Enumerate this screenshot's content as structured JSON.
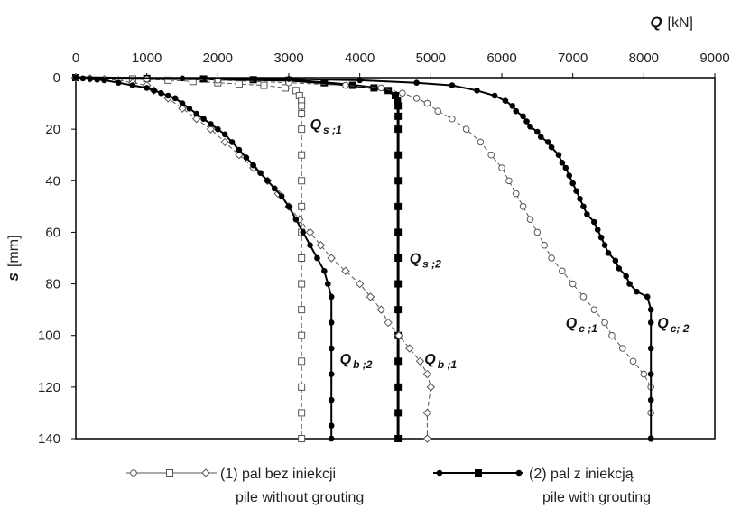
{
  "chart_data": {
    "type": "line",
    "axes": {
      "x": {
        "var": "Q",
        "unit": "[kN]",
        "range": [
          0,
          9000
        ],
        "ticks": [
          0,
          1000,
          2000,
          3000,
          4000,
          5000,
          6000,
          7000,
          8000,
          9000
        ],
        "position": "top"
      },
      "y": {
        "var": "s",
        "unit": "[mm]",
        "range": [
          0,
          140
        ],
        "ticks": [
          0,
          20,
          40,
          60,
          80,
          100,
          120,
          140
        ],
        "inverted": true
      }
    },
    "grid": false,
    "legend": {
      "placement": "bottom",
      "entries": [
        {
          "group": "1",
          "line1": "(1) pal bez iniekcji",
          "line2": "pile without grouting",
          "style": "dashed-open"
        },
        {
          "group": "2",
          "line1": "(2) pal z iniekcją",
          "line2": "pile with grouting",
          "style": "solid-filled"
        }
      ]
    },
    "series": [
      {
        "id": "Qs1",
        "label": "Q",
        "sub": "s ;1",
        "group": "1",
        "marker": "square",
        "points": [
          [
            0,
            0
          ],
          [
            800,
            0.5
          ],
          [
            1300,
            1
          ],
          [
            1650,
            1.5
          ],
          [
            2000,
            2
          ],
          [
            2300,
            2.5
          ],
          [
            2650,
            3
          ],
          [
            2950,
            4
          ],
          [
            3100,
            5
          ],
          [
            3150,
            7
          ],
          [
            3180,
            9
          ],
          [
            3180,
            11
          ],
          [
            3180,
            14
          ],
          [
            3180,
            20
          ],
          [
            3180,
            30
          ],
          [
            3180,
            40
          ],
          [
            3180,
            50
          ],
          [
            3180,
            60
          ],
          [
            3180,
            70
          ],
          [
            3180,
            80
          ],
          [
            3180,
            90
          ],
          [
            3180,
            100
          ],
          [
            3180,
            110
          ],
          [
            3180,
            120
          ],
          [
            3180,
            130
          ],
          [
            3180,
            140
          ]
        ]
      },
      {
        "id": "Qs2",
        "label": "Q",
        "sub": "s ;2",
        "group": "2",
        "marker": "filled-square",
        "points": [
          [
            0,
            0
          ],
          [
            1000,
            0.3
          ],
          [
            1800,
            0.5
          ],
          [
            2500,
            0.8
          ],
          [
            3000,
            1
          ],
          [
            3500,
            2
          ],
          [
            3900,
            3
          ],
          [
            4200,
            4
          ],
          [
            4400,
            5
          ],
          [
            4500,
            7
          ],
          [
            4530,
            9
          ],
          [
            4540,
            11
          ],
          [
            4540,
            15
          ],
          [
            4540,
            20
          ],
          [
            4540,
            30
          ],
          [
            4540,
            40
          ],
          [
            4540,
            50
          ],
          [
            4540,
            60
          ],
          [
            4540,
            70
          ],
          [
            4540,
            80
          ],
          [
            4540,
            90
          ],
          [
            4540,
            100
          ],
          [
            4540,
            110
          ],
          [
            4540,
            120
          ],
          [
            4540,
            130
          ],
          [
            4540,
            140
          ]
        ]
      },
      {
        "id": "Qb1",
        "label": "Q",
        "sub": "b ;1",
        "group": "1",
        "marker": "diamond",
        "points": [
          [
            0,
            0
          ],
          [
            200,
            0.3
          ],
          [
            400,
            0.6
          ],
          [
            600,
            1
          ],
          [
            800,
            2
          ],
          [
            1000,
            3
          ],
          [
            1100,
            5
          ],
          [
            1300,
            8
          ],
          [
            1500,
            12
          ],
          [
            1700,
            16
          ],
          [
            1900,
            20
          ],
          [
            2100,
            25
          ],
          [
            2300,
            30
          ],
          [
            2500,
            35
          ],
          [
            2700,
            40
          ],
          [
            2850,
            45
          ],
          [
            3000,
            50
          ],
          [
            3150,
            55
          ],
          [
            3300,
            60
          ],
          [
            3450,
            65
          ],
          [
            3600,
            70
          ],
          [
            3800,
            75
          ],
          [
            4000,
            80
          ],
          [
            4150,
            85
          ],
          [
            4300,
            90
          ],
          [
            4400,
            95
          ],
          [
            4550,
            100
          ],
          [
            4700,
            105
          ],
          [
            4850,
            110
          ],
          [
            4950,
            115
          ],
          [
            5000,
            120
          ],
          [
            4950,
            130
          ],
          [
            4950,
            140
          ]
        ]
      },
      {
        "id": "Qb2",
        "label": "Q",
        "sub": "b ;2",
        "group": "2",
        "marker": "filled-circle",
        "points": [
          [
            0,
            0
          ],
          [
            100,
            0.3
          ],
          [
            200,
            0.5
          ],
          [
            300,
            0.8
          ],
          [
            400,
            1
          ],
          [
            600,
            2
          ],
          [
            800,
            3
          ],
          [
            1000,
            4
          ],
          [
            1100,
            5
          ],
          [
            1200,
            6
          ],
          [
            1300,
            7
          ],
          [
            1400,
            8
          ],
          [
            1500,
            10
          ],
          [
            1600,
            12
          ],
          [
            1700,
            14
          ],
          [
            1800,
            16
          ],
          [
            1900,
            18
          ],
          [
            2000,
            20
          ],
          [
            2100,
            22
          ],
          [
            2200,
            25
          ],
          [
            2300,
            28
          ],
          [
            2400,
            31
          ],
          [
            2500,
            34
          ],
          [
            2600,
            37
          ],
          [
            2700,
            40
          ],
          [
            2800,
            43
          ],
          [
            2900,
            46
          ],
          [
            3000,
            50
          ],
          [
            3100,
            55
          ],
          [
            3200,
            60
          ],
          [
            3300,
            65
          ],
          [
            3400,
            70
          ],
          [
            3500,
            75
          ],
          [
            3550,
            80
          ],
          [
            3600,
            85
          ],
          [
            3600,
            95
          ],
          [
            3600,
            105
          ],
          [
            3600,
            115
          ],
          [
            3600,
            125
          ],
          [
            3600,
            135
          ],
          [
            3600,
            140
          ]
        ]
      },
      {
        "id": "Qc1",
        "label": "Q",
        "sub": "c ;1",
        "group": "1",
        "marker": "circle",
        "points": [
          [
            0,
            0
          ],
          [
            1000,
            0.5
          ],
          [
            2000,
            1
          ],
          [
            3000,
            2
          ],
          [
            3800,
            3
          ],
          [
            4300,
            4
          ],
          [
            4600,
            6
          ],
          [
            4800,
            8
          ],
          [
            4950,
            10
          ],
          [
            5100,
            13
          ],
          [
            5300,
            16
          ],
          [
            5500,
            20
          ],
          [
            5700,
            25
          ],
          [
            5850,
            30
          ],
          [
            6000,
            35
          ],
          [
            6100,
            40
          ],
          [
            6200,
            45
          ],
          [
            6300,
            50
          ],
          [
            6400,
            55
          ],
          [
            6500,
            60
          ],
          [
            6600,
            65
          ],
          [
            6700,
            70
          ],
          [
            6850,
            75
          ],
          [
            7000,
            80
          ],
          [
            7150,
            85
          ],
          [
            7300,
            90
          ],
          [
            7450,
            95
          ],
          [
            7550,
            100
          ],
          [
            7700,
            105
          ],
          [
            7850,
            110
          ],
          [
            8000,
            115
          ],
          [
            8100,
            120
          ],
          [
            8100,
            130
          ],
          [
            8100,
            140
          ]
        ]
      },
      {
        "id": "Qc2",
        "label": "Q",
        "sub": "c; 2",
        "group": "2",
        "marker": "filled-circle",
        "points": [
          [
            0,
            0
          ],
          [
            1500,
            0.3
          ],
          [
            3000,
            0.5
          ],
          [
            4000,
            1
          ],
          [
            4800,
            2
          ],
          [
            5300,
            3
          ],
          [
            5650,
            5
          ],
          [
            5900,
            7
          ],
          [
            6050,
            9
          ],
          [
            6150,
            11
          ],
          [
            6200,
            13
          ],
          [
            6300,
            15
          ],
          [
            6350,
            17
          ],
          [
            6400,
            19
          ],
          [
            6500,
            21
          ],
          [
            6550,
            23
          ],
          [
            6650,
            25
          ],
          [
            6700,
            27
          ],
          [
            6800,
            30
          ],
          [
            6850,
            33
          ],
          [
            6900,
            35
          ],
          [
            6950,
            38
          ],
          [
            7000,
            41
          ],
          [
            7050,
            44
          ],
          [
            7100,
            47
          ],
          [
            7150,
            50
          ],
          [
            7200,
            53
          ],
          [
            7300,
            56
          ],
          [
            7350,
            59
          ],
          [
            7400,
            62
          ],
          [
            7450,
            65
          ],
          [
            7500,
            68
          ],
          [
            7600,
            71
          ],
          [
            7650,
            74
          ],
          [
            7750,
            77
          ],
          [
            7800,
            80
          ],
          [
            7900,
            83
          ],
          [
            8050,
            85
          ],
          [
            8100,
            90
          ],
          [
            8100,
            95
          ],
          [
            8100,
            105
          ],
          [
            8100,
            115
          ],
          [
            8100,
            125
          ],
          [
            8100,
            140
          ]
        ]
      }
    ],
    "labels": [
      {
        "series": "Qs1",
        "x": 3300,
        "y": 20
      },
      {
        "series": "Qs2",
        "x": 4700,
        "y": 72
      },
      {
        "series": "Qb2",
        "x": 3720,
        "y": 111
      },
      {
        "series": "Qb1",
        "x": 4910,
        "y": 111
      },
      {
        "series": "Qc1",
        "x": 6900,
        "y": 97
      },
      {
        "series": "Qc2",
        "x": 8190,
        "y": 97
      }
    ]
  }
}
